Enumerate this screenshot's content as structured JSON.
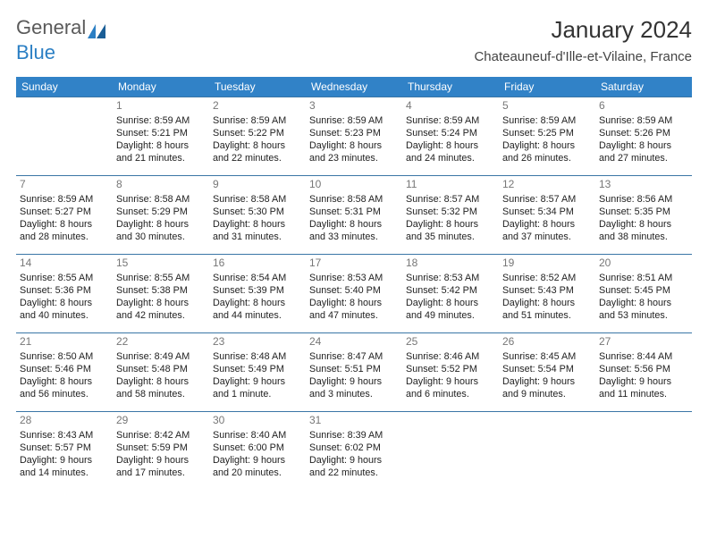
{
  "logo": {
    "text1": "General",
    "text2": "Blue"
  },
  "title": "January 2024",
  "location": "Chateauneuf-d'Ille-et-Vilaine, France",
  "days": [
    "Sunday",
    "Monday",
    "Tuesday",
    "Wednesday",
    "Thursday",
    "Friday",
    "Saturday"
  ],
  "colors": {
    "header_bg": "#3182c7",
    "border": "#3a76a6",
    "logo_gray": "#5a5a5a",
    "logo_blue": "#2b7fc4"
  },
  "weeks": [
    [
      null,
      {
        "n": "1",
        "sr": "8:59 AM",
        "ss": "5:21 PM",
        "dl": "8 hours and 21 minutes."
      },
      {
        "n": "2",
        "sr": "8:59 AM",
        "ss": "5:22 PM",
        "dl": "8 hours and 22 minutes."
      },
      {
        "n": "3",
        "sr": "8:59 AM",
        "ss": "5:23 PM",
        "dl": "8 hours and 23 minutes."
      },
      {
        "n": "4",
        "sr": "8:59 AM",
        "ss": "5:24 PM",
        "dl": "8 hours and 24 minutes."
      },
      {
        "n": "5",
        "sr": "8:59 AM",
        "ss": "5:25 PM",
        "dl": "8 hours and 26 minutes."
      },
      {
        "n": "6",
        "sr": "8:59 AM",
        "ss": "5:26 PM",
        "dl": "8 hours and 27 minutes."
      }
    ],
    [
      {
        "n": "7",
        "sr": "8:59 AM",
        "ss": "5:27 PM",
        "dl": "8 hours and 28 minutes."
      },
      {
        "n": "8",
        "sr": "8:58 AM",
        "ss": "5:29 PM",
        "dl": "8 hours and 30 minutes."
      },
      {
        "n": "9",
        "sr": "8:58 AM",
        "ss": "5:30 PM",
        "dl": "8 hours and 31 minutes."
      },
      {
        "n": "10",
        "sr": "8:58 AM",
        "ss": "5:31 PM",
        "dl": "8 hours and 33 minutes."
      },
      {
        "n": "11",
        "sr": "8:57 AM",
        "ss": "5:32 PM",
        "dl": "8 hours and 35 minutes."
      },
      {
        "n": "12",
        "sr": "8:57 AM",
        "ss": "5:34 PM",
        "dl": "8 hours and 37 minutes."
      },
      {
        "n": "13",
        "sr": "8:56 AM",
        "ss": "5:35 PM",
        "dl": "8 hours and 38 minutes."
      }
    ],
    [
      {
        "n": "14",
        "sr": "8:55 AM",
        "ss": "5:36 PM",
        "dl": "8 hours and 40 minutes."
      },
      {
        "n": "15",
        "sr": "8:55 AM",
        "ss": "5:38 PM",
        "dl": "8 hours and 42 minutes."
      },
      {
        "n": "16",
        "sr": "8:54 AM",
        "ss": "5:39 PM",
        "dl": "8 hours and 44 minutes."
      },
      {
        "n": "17",
        "sr": "8:53 AM",
        "ss": "5:40 PM",
        "dl": "8 hours and 47 minutes."
      },
      {
        "n": "18",
        "sr": "8:53 AM",
        "ss": "5:42 PM",
        "dl": "8 hours and 49 minutes."
      },
      {
        "n": "19",
        "sr": "8:52 AM",
        "ss": "5:43 PM",
        "dl": "8 hours and 51 minutes."
      },
      {
        "n": "20",
        "sr": "8:51 AM",
        "ss": "5:45 PM",
        "dl": "8 hours and 53 minutes."
      }
    ],
    [
      {
        "n": "21",
        "sr": "8:50 AM",
        "ss": "5:46 PM",
        "dl": "8 hours and 56 minutes."
      },
      {
        "n": "22",
        "sr": "8:49 AM",
        "ss": "5:48 PM",
        "dl": "8 hours and 58 minutes."
      },
      {
        "n": "23",
        "sr": "8:48 AM",
        "ss": "5:49 PM",
        "dl": "9 hours and 1 minute."
      },
      {
        "n": "24",
        "sr": "8:47 AM",
        "ss": "5:51 PM",
        "dl": "9 hours and 3 minutes."
      },
      {
        "n": "25",
        "sr": "8:46 AM",
        "ss": "5:52 PM",
        "dl": "9 hours and 6 minutes."
      },
      {
        "n": "26",
        "sr": "8:45 AM",
        "ss": "5:54 PM",
        "dl": "9 hours and 9 minutes."
      },
      {
        "n": "27",
        "sr": "8:44 AM",
        "ss": "5:56 PM",
        "dl": "9 hours and 11 minutes."
      }
    ],
    [
      {
        "n": "28",
        "sr": "8:43 AM",
        "ss": "5:57 PM",
        "dl": "9 hours and 14 minutes."
      },
      {
        "n": "29",
        "sr": "8:42 AM",
        "ss": "5:59 PM",
        "dl": "9 hours and 17 minutes."
      },
      {
        "n": "30",
        "sr": "8:40 AM",
        "ss": "6:00 PM",
        "dl": "9 hours and 20 minutes."
      },
      {
        "n": "31",
        "sr": "8:39 AM",
        "ss": "6:02 PM",
        "dl": "9 hours and 22 minutes."
      },
      null,
      null,
      null
    ]
  ],
  "labels": {
    "sunrise": "Sunrise:",
    "sunset": "Sunset:",
    "daylight": "Daylight:"
  }
}
